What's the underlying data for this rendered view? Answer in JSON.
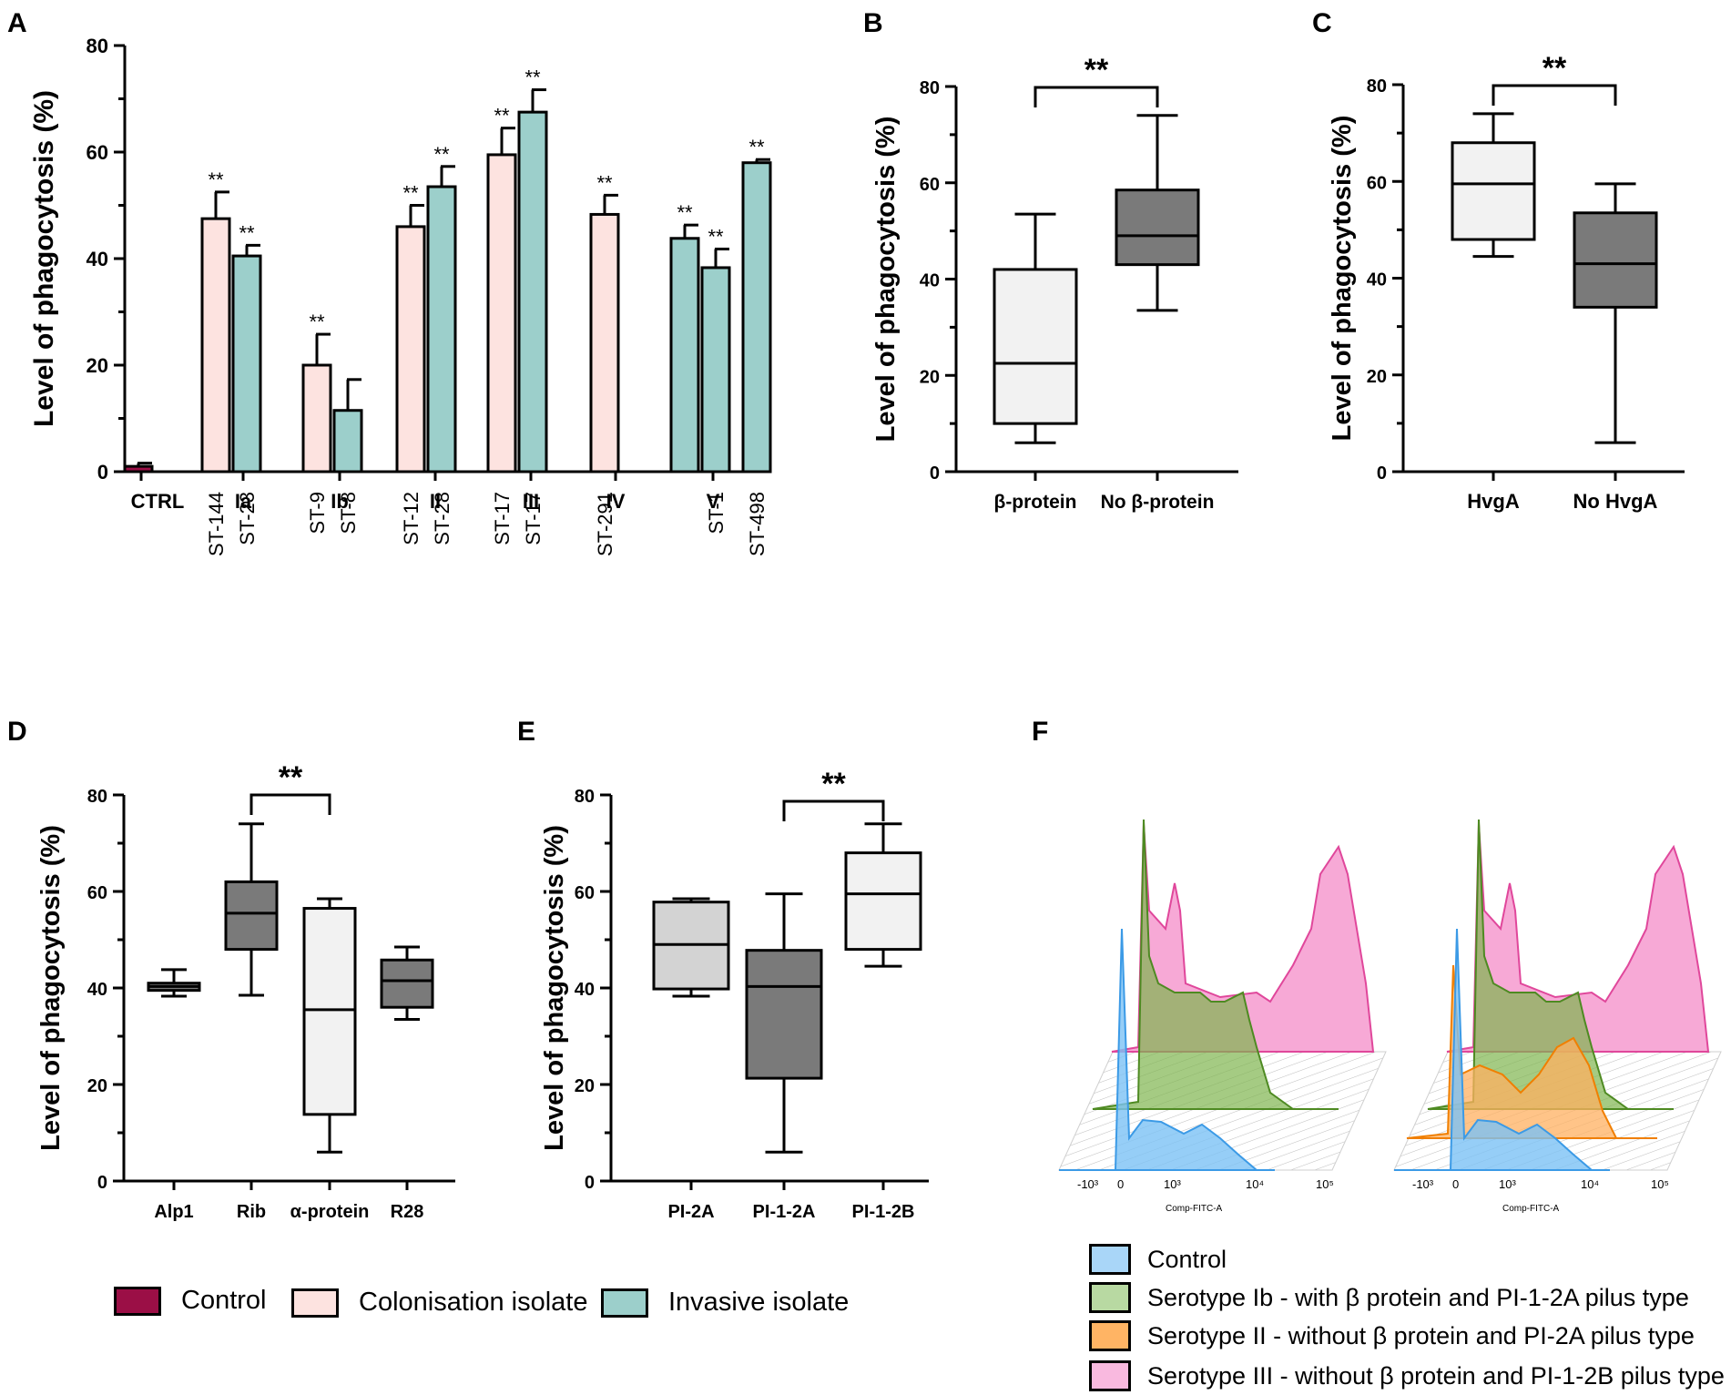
{
  "colors": {
    "control": "#9b0f46",
    "colonisation": "#fde3e0",
    "invasive": "#9ccfcb",
    "light_box": "#f2f2f2",
    "dark_box": "#7a7a7a",
    "mid_box": "#d3d3d3",
    "flow_blue": "#7cc2f5",
    "flow_green": "#7fb54e",
    "flow_orange": "#ffb060",
    "flow_pink": "#f48cc8"
  },
  "chart_data": [
    {
      "panel": "A",
      "type": "bar",
      "ylabel": "Level of phagocytosis (%)",
      "ylim": [
        0,
        80
      ],
      "yticks": [
        "0",
        "20",
        "40",
        "60",
        "80"
      ],
      "groups": [
        "CTRL",
        "Ia",
        "Ib",
        "II",
        "III",
        "IV",
        "V"
      ],
      "bars": [
        {
          "group": 0,
          "st": "",
          "kind": "control",
          "value": 1,
          "err": 0.6,
          "sig": ""
        },
        {
          "group": 1,
          "st": "ST-144",
          "kind": "colonisation",
          "value": 47.5,
          "err": 5,
          "sig": "**"
        },
        {
          "group": 1,
          "st": "ST-23",
          "kind": "invasive",
          "value": 40.5,
          "err": 2,
          "sig": "**"
        },
        {
          "group": 2,
          "st": "ST-9",
          "kind": "colonisation",
          "value": 20,
          "err": 5.8,
          "sig": "**"
        },
        {
          "group": 2,
          "st": "ST-8",
          "kind": "invasive",
          "value": 11.5,
          "err": 5.8,
          "sig": ""
        },
        {
          "group": 3,
          "st": "ST-12",
          "kind": "colonisation",
          "value": 46,
          "err": 4,
          "sig": "**"
        },
        {
          "group": 3,
          "st": "ST-28",
          "kind": "invasive",
          "value": 53.5,
          "err": 3.8,
          "sig": "**"
        },
        {
          "group": 4,
          "st": "ST-17",
          "kind": "colonisation",
          "value": 59.5,
          "err": 5,
          "sig": "**"
        },
        {
          "group": 4,
          "st": "ST-17",
          "kind": "invasive",
          "value": 67.5,
          "err": 4.2,
          "sig": "**"
        },
        {
          "group": 5,
          "st": "ST-291",
          "kind": "colonisation",
          "value": 48.3,
          "err": 3.6,
          "sig": "**"
        },
        {
          "group": 6,
          "st": "",
          "kind": "invasive",
          "value": 43.8,
          "err": 2.5,
          "sig": "**"
        },
        {
          "group": 6,
          "st": "ST-1",
          "kind": "invasive",
          "value": 38.3,
          "err": 3.5,
          "sig": "**"
        },
        {
          "group": 6,
          "st": "ST-498",
          "kind": "invasive",
          "value": 58,
          "err": 0.6,
          "sig": "**"
        }
      ]
    },
    {
      "panel": "B",
      "type": "box",
      "ylabel": "Level of phagocytosis (%)",
      "ylim": [
        0,
        80
      ],
      "yticks": [
        "0",
        "20",
        "40",
        "60",
        "80"
      ],
      "categories": [
        "β-protein",
        "No β-protein"
      ],
      "boxes": [
        {
          "min": 6,
          "q1": 10,
          "median": 22.5,
          "q3": 42,
          "max": 53.5,
          "fill": "light_box"
        },
        {
          "min": 33.5,
          "q1": 43,
          "median": 49,
          "q3": 58.5,
          "max": 74,
          "fill": "dark_box"
        }
      ],
      "bracket": {
        "from": 0,
        "to": 1,
        "label": "**"
      }
    },
    {
      "panel": "C",
      "type": "box",
      "ylabel": "Level of phagocytosis (%)",
      "ylim": [
        0,
        80
      ],
      "yticks": [
        "0",
        "20",
        "40",
        "60",
        "80"
      ],
      "categories": [
        "HvgA",
        "No HvgA"
      ],
      "boxes": [
        {
          "min": 44.5,
          "q1": 48,
          "median": 59.5,
          "q3": 68,
          "max": 74,
          "fill": "light_box"
        },
        {
          "min": 6,
          "q1": 34,
          "median": 43,
          "q3": 53.5,
          "max": 59.5,
          "fill": "dark_box"
        }
      ],
      "bracket": {
        "from": 0,
        "to": 1,
        "label": "**"
      }
    },
    {
      "panel": "D",
      "type": "box",
      "ylabel": "Level of phagocytosis (%)",
      "ylim": [
        0,
        80
      ],
      "yticks": [
        "0",
        "20",
        "40",
        "60",
        "80"
      ],
      "categories": [
        "Alp1",
        "Rib",
        "α-protein",
        "R28"
      ],
      "boxes": [
        {
          "min": 38.3,
          "q1": 39.5,
          "median": 40.3,
          "q3": 41,
          "max": 43.8,
          "fill": "dark_box"
        },
        {
          "min": 38.5,
          "q1": 48,
          "median": 55.5,
          "q3": 62,
          "max": 74,
          "fill": "dark_box"
        },
        {
          "min": 6,
          "q1": 13.8,
          "median": 35.5,
          "q3": 56.5,
          "max": 58.5,
          "fill": "light_box"
        },
        {
          "min": 33.5,
          "q1": 36,
          "median": 41.5,
          "q3": 45.8,
          "max": 48.5,
          "fill": "dark_box"
        }
      ],
      "bracket": {
        "from": 1,
        "to": 2,
        "label": "**"
      }
    },
    {
      "panel": "E",
      "type": "box",
      "ylabel": "Level of phagocytosis (%)",
      "ylim": [
        0,
        80
      ],
      "yticks": [
        "0",
        "20",
        "40",
        "60",
        "80"
      ],
      "categories": [
        "PI-2A",
        "PI-1-2A",
        "PI-1-2B"
      ],
      "boxes": [
        {
          "min": 38.3,
          "q1": 39.8,
          "median": 49,
          "q3": 57.8,
          "max": 58.5,
          "fill": "mid_box"
        },
        {
          "min": 6,
          "q1": 21.3,
          "median": 40.3,
          "q3": 47.8,
          "max": 59.5,
          "fill": "dark_box"
        },
        {
          "min": 44.5,
          "q1": 48,
          "median": 59.5,
          "q3": 68,
          "max": 74,
          "fill": "light_box"
        }
      ],
      "bracket": {
        "from": 1,
        "to": 2,
        "label": "**"
      }
    },
    {
      "panel": "F",
      "type": "histogram",
      "xlabel": "Comp-FITC-A",
      "xticks": [
        "-10³",
        "0",
        "10³",
        "10⁴",
        "10⁵"
      ],
      "series": [
        "Control",
        "Serotype Ib - with β protein and PI-1-2A pilus type",
        "Serotype II - without β protein and PI-2A pilus type",
        "Serotype III - without β protein and PI-1-2B pilus type"
      ]
    }
  ],
  "panel_letters": {
    "a": "A",
    "b": "B",
    "c": "C",
    "d": "D",
    "e": "E",
    "f": "F"
  },
  "legend_main": {
    "control": "Control",
    "colonisation": "Colonisation isolate",
    "invasive": "Invasive isolate"
  },
  "legend_f": {
    "control": "Control",
    "ib": "Serotype Ib - with β protein and PI-1-2A pilus type",
    "ii": "Serotype II - without β protein and PI-2A pilus type",
    "iii": "Serotype III - without β protein and PI-1-2B pilus type"
  }
}
